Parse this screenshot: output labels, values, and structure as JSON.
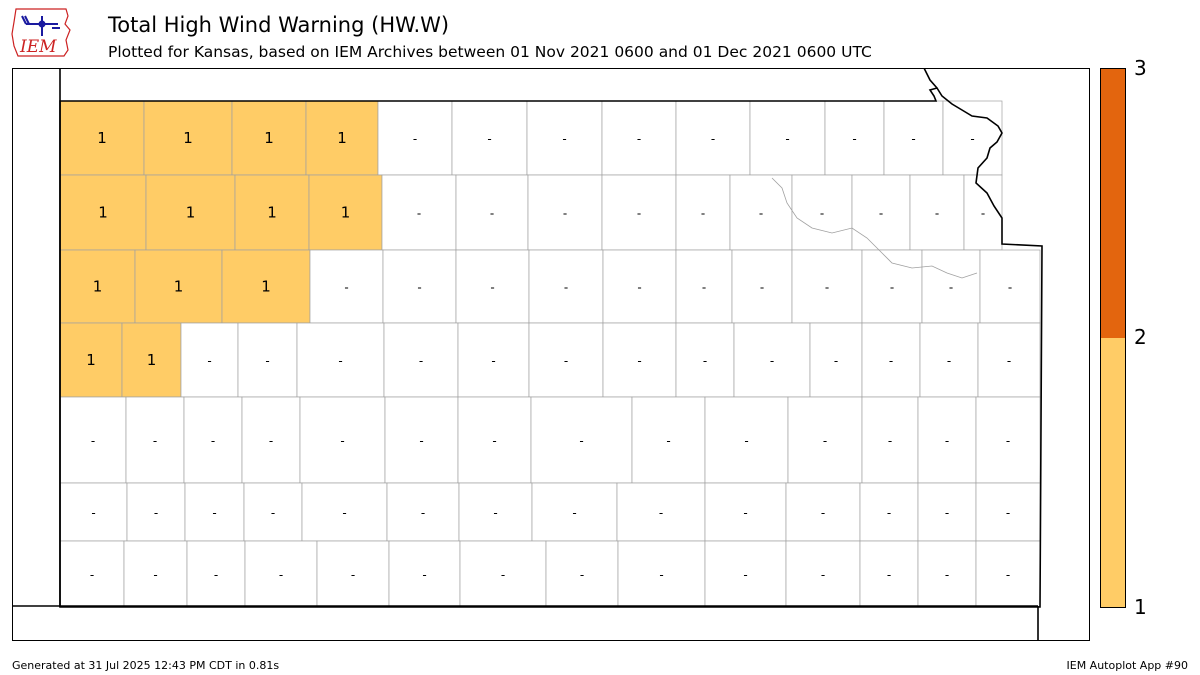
{
  "header": {
    "logo_text": "IEM",
    "title": "Total High Wind Warning (HW.W)",
    "subtitle": "Plotted for Kansas, based on IEM Archives  between 01 Nov 2021 0600 and 01 Dec 2021 0600 UTC"
  },
  "colors": {
    "level_1": "#ffcc66",
    "level_2": "#e3650e",
    "county_border": "#a0a0a0",
    "state_border": "#000000"
  },
  "colorbar": {
    "bands": [
      {
        "from": 1,
        "to": 2,
        "color": "#ffcc66"
      },
      {
        "from": 2,
        "to": 3,
        "color": "#e3650e"
      }
    ],
    "ticks": [
      "3",
      "2",
      "1"
    ]
  },
  "map": {
    "highlighted_counties": [
      {
        "row": 1,
        "label": "1",
        "count": 1
      },
      {
        "row": 1,
        "label": "1",
        "count": 1
      },
      {
        "row": 1,
        "label": "1",
        "count": 1
      },
      {
        "row": 1,
        "label": "1",
        "count": 1
      },
      {
        "row": 2,
        "label": "1",
        "count": 1
      },
      {
        "row": 2,
        "label": "1",
        "count": 1
      },
      {
        "row": 2,
        "label": "1",
        "count": 1
      },
      {
        "row": 2,
        "label": "1",
        "count": 1
      },
      {
        "row": 3,
        "label": "1",
        "count": 1
      },
      {
        "row": 3,
        "label": "1",
        "count": 1
      },
      {
        "row": 3,
        "label": "1",
        "count": 1
      },
      {
        "row": 4,
        "label": "1",
        "count": 1
      },
      {
        "row": 4,
        "label": "1",
        "count": 1
      }
    ],
    "empty_label": "-"
  },
  "footer": {
    "generated": "Generated at 31 Jul 2025 12:43 PM CDT in 0.81s",
    "app": "IEM Autoplot App #90"
  }
}
